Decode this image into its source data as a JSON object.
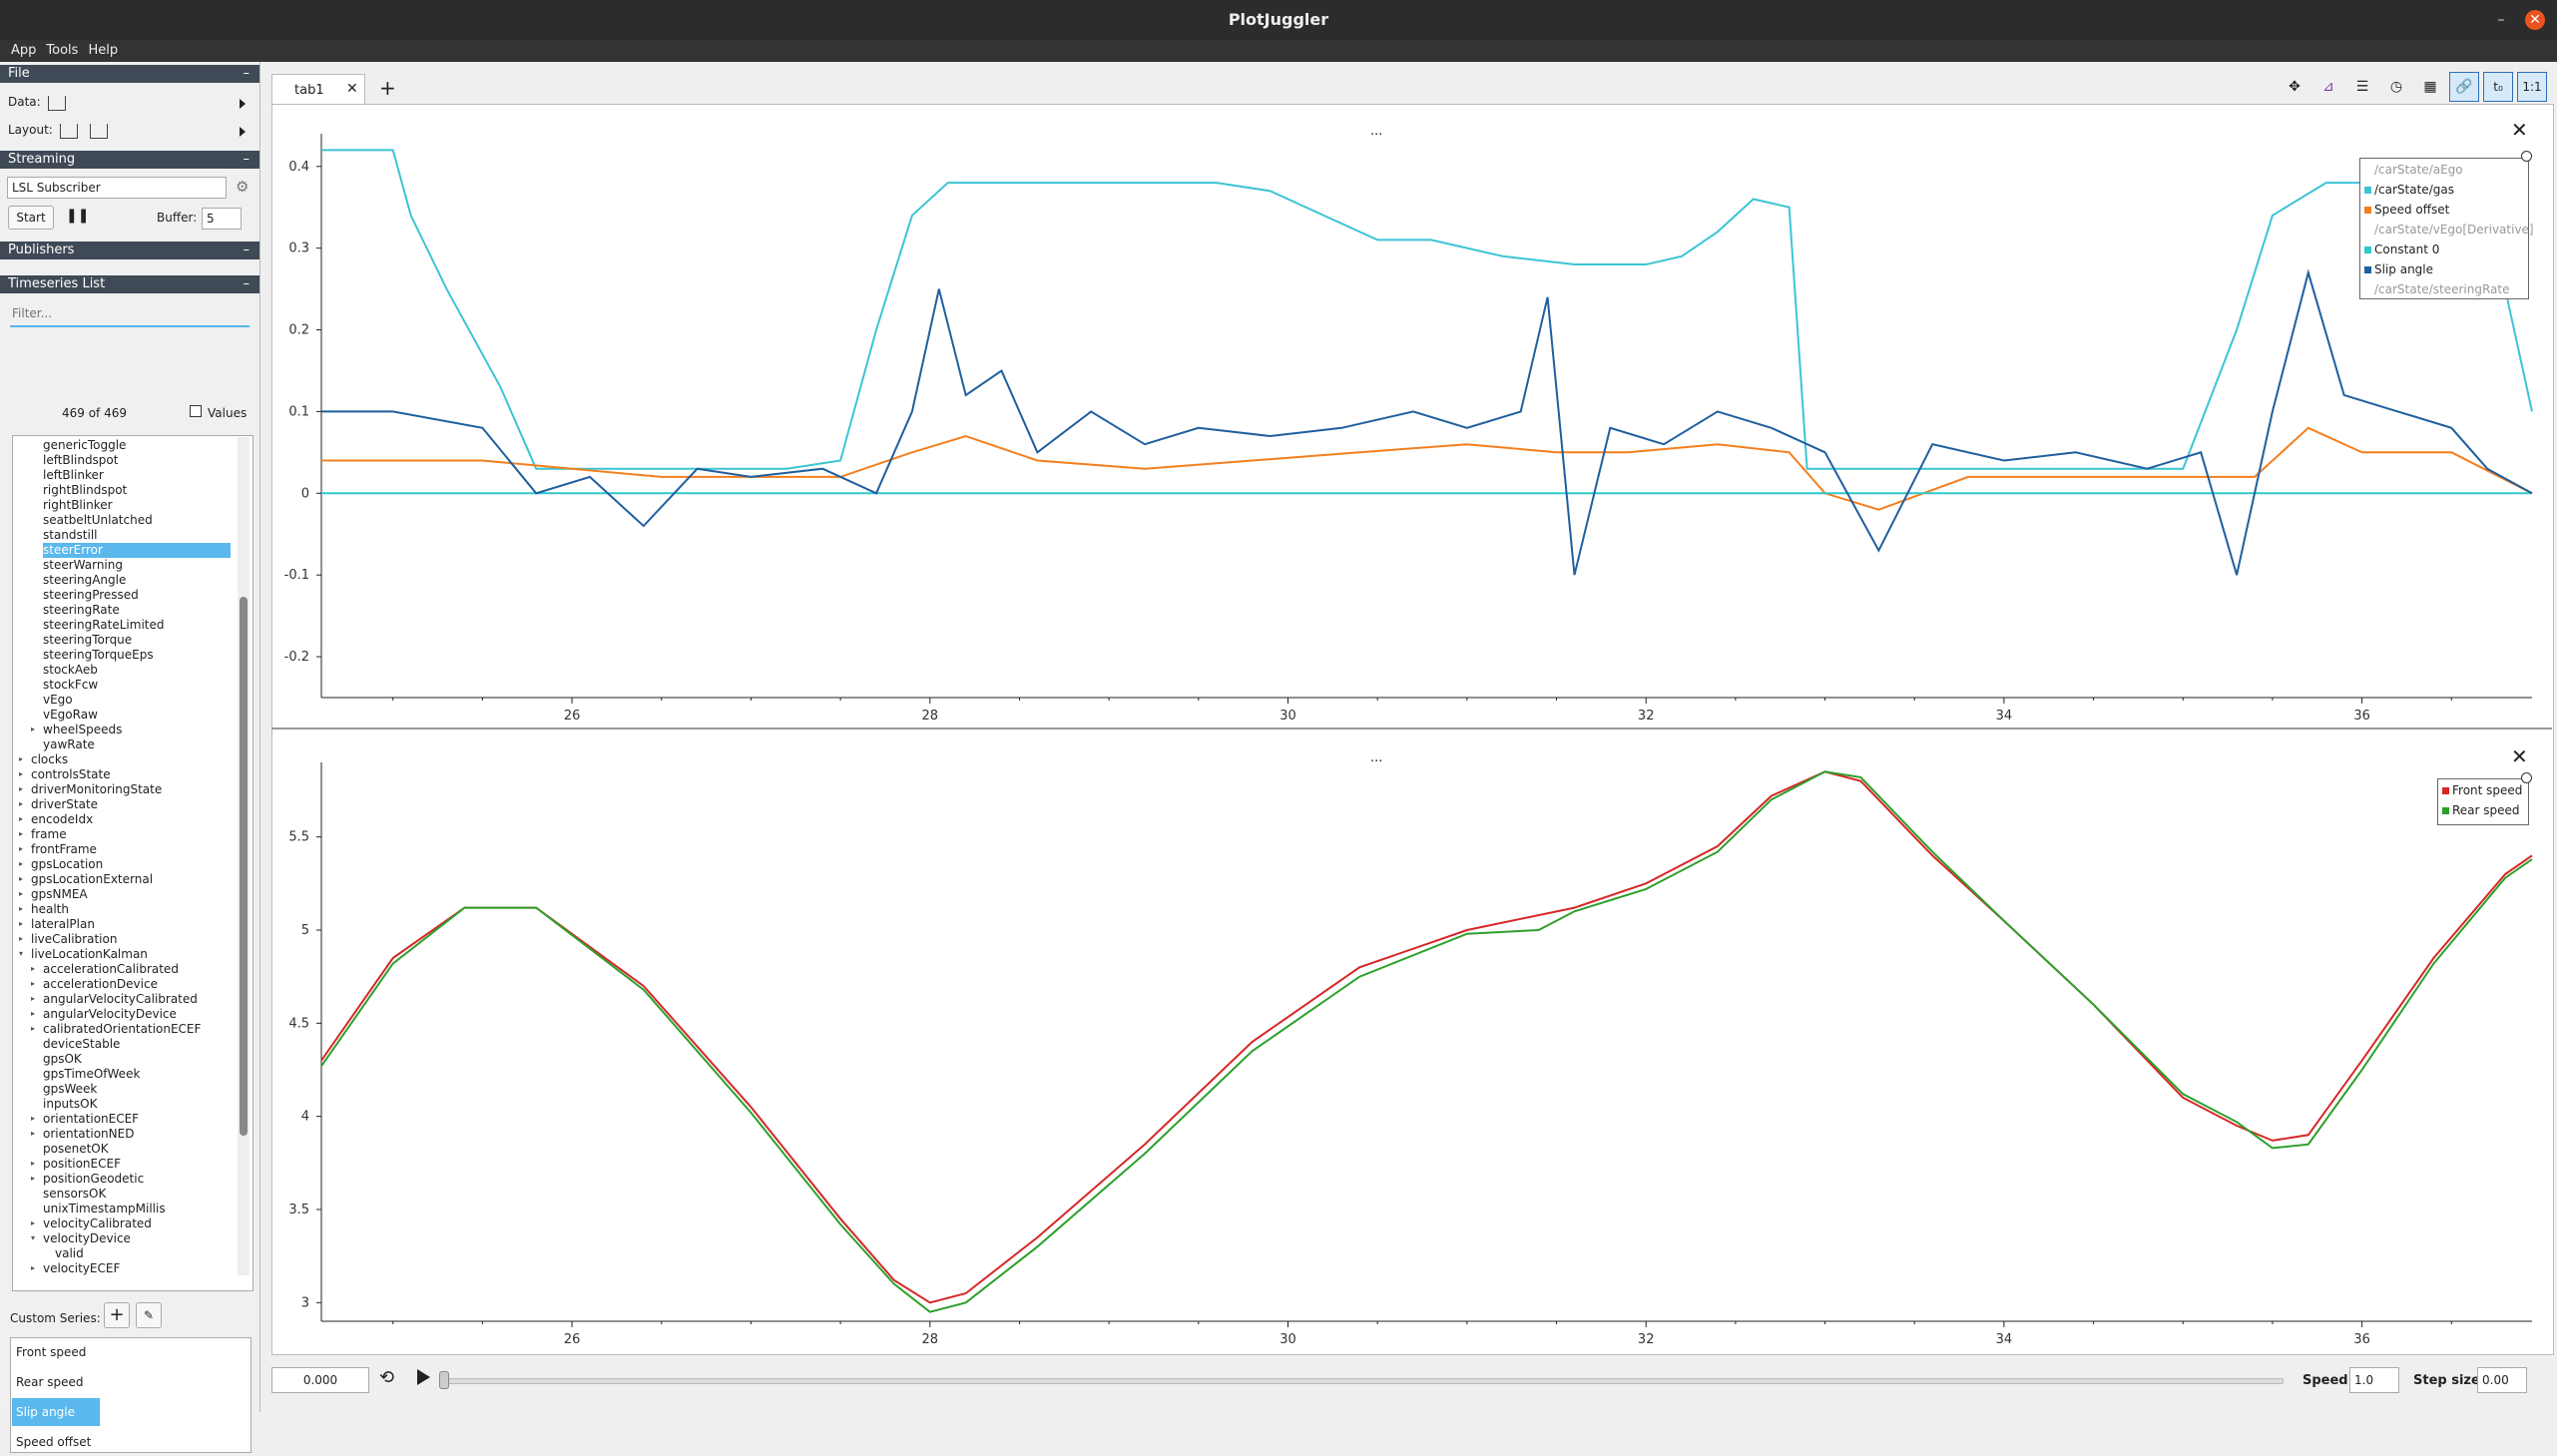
{
  "window": {
    "title": "PlotJuggler"
  },
  "menu": [
    "App",
    "Tools",
    "Help"
  ],
  "file_section": {
    "header": "File",
    "data_label": "Data:",
    "layout_label": "Layout:"
  },
  "streaming": {
    "header": "Streaming",
    "source": "LSL Subscriber",
    "start_label": "Start",
    "buffer_label": "Buffer:",
    "buffer_value": "5"
  },
  "publishers": {
    "header": "Publishers"
  },
  "timeseries": {
    "header": "Timeseries List",
    "filter_placeholder": "Filter...",
    "count": "469 of 469",
    "values_label": "Values",
    "tree": [
      {
        "label": "genericToggle",
        "lvl": 1
      },
      {
        "label": "leftBlindspot",
        "lvl": 1
      },
      {
        "label": "leftBlinker",
        "lvl": 1
      },
      {
        "label": "rightBlindspot",
        "lvl": 1
      },
      {
        "label": "rightBlinker",
        "lvl": 1
      },
      {
        "label": "seatbeltUnlatched",
        "lvl": 1
      },
      {
        "label": "standstill",
        "lvl": 1
      },
      {
        "label": "steerError",
        "lvl": 1,
        "sel": true
      },
      {
        "label": "steerWarning",
        "lvl": 1
      },
      {
        "label": "steeringAngle",
        "lvl": 1
      },
      {
        "label": "steeringPressed",
        "lvl": 1
      },
      {
        "label": "steeringRate",
        "lvl": 1
      },
      {
        "label": "steeringRateLimited",
        "lvl": 1
      },
      {
        "label": "steeringTorque",
        "lvl": 1
      },
      {
        "label": "steeringTorqueEps",
        "lvl": 1
      },
      {
        "label": "stockAeb",
        "lvl": 1
      },
      {
        "label": "stockFcw",
        "lvl": 1
      },
      {
        "label": "vEgo",
        "lvl": 1
      },
      {
        "label": "vEgoRaw",
        "lvl": 1
      },
      {
        "label": "wheelSpeeds",
        "lvl": 1,
        "exp": "r"
      },
      {
        "label": "yawRate",
        "lvl": 1
      },
      {
        "label": "clocks",
        "lvl": 0,
        "exp": "r"
      },
      {
        "label": "controlsState",
        "lvl": 0,
        "exp": "r"
      },
      {
        "label": "driverMonitoringState",
        "lvl": 0,
        "exp": "r"
      },
      {
        "label": "driverState",
        "lvl": 0,
        "exp": "r"
      },
      {
        "label": "encodeIdx",
        "lvl": 0,
        "exp": "r"
      },
      {
        "label": "frame",
        "lvl": 0,
        "exp": "r"
      },
      {
        "label": "frontFrame",
        "lvl": 0,
        "exp": "r"
      },
      {
        "label": "gpsLocation",
        "lvl": 0,
        "exp": "r"
      },
      {
        "label": "gpsLocationExternal",
        "lvl": 0,
        "exp": "r"
      },
      {
        "label": "gpsNMEA",
        "lvl": 0,
        "exp": "r"
      },
      {
        "label": "health",
        "lvl": 0,
        "exp": "r"
      },
      {
        "label": "lateralPlan",
        "lvl": 0,
        "exp": "r"
      },
      {
        "label": "liveCalibration",
        "lvl": 0,
        "exp": "r"
      },
      {
        "label": "liveLocationKalman",
        "lvl": 0,
        "exp": "d"
      },
      {
        "label": "accelerationCalibrated",
        "lvl": 1,
        "exp": "r"
      },
      {
        "label": "accelerationDevice",
        "lvl": 1,
        "exp": "r"
      },
      {
        "label": "angularVelocityCalibrated",
        "lvl": 1,
        "exp": "r"
      },
      {
        "label": "angularVelocityDevice",
        "lvl": 1,
        "exp": "r"
      },
      {
        "label": "calibratedOrientationECEF",
        "lvl": 1,
        "exp": "r"
      },
      {
        "label": "deviceStable",
        "lvl": 1
      },
      {
        "label": "gpsOK",
        "lvl": 1
      },
      {
        "label": "gpsTimeOfWeek",
        "lvl": 1
      },
      {
        "label": "gpsWeek",
        "lvl": 1
      },
      {
        "label": "inputsOK",
        "lvl": 1
      },
      {
        "label": "orientationECEF",
        "lvl": 1,
        "exp": "r"
      },
      {
        "label": "orientationNED",
        "lvl": 1,
        "exp": "r"
      },
      {
        "label": "posenetOK",
        "lvl": 1
      },
      {
        "label": "positionECEF",
        "lvl": 1,
        "exp": "r"
      },
      {
        "label": "positionGeodetic",
        "lvl": 1,
        "exp": "r"
      },
      {
        "label": "sensorsOK",
        "lvl": 1
      },
      {
        "label": "unixTimestampMillis",
        "lvl": 1
      },
      {
        "label": "velocityCalibrated",
        "lvl": 1,
        "exp": "r"
      },
      {
        "label": "velocityDevice",
        "lvl": 1,
        "exp": "d"
      },
      {
        "label": "valid",
        "lvl": 2
      },
      {
        "label": "velocityECEF",
        "lvl": 1,
        "exp": "r"
      }
    ]
  },
  "custom_series": {
    "label": "Custom Series:",
    "items": [
      "Front speed",
      "Rear speed",
      "Slip angle",
      "Speed offset"
    ],
    "selected": "Slip angle"
  },
  "tabs": {
    "active": "tab1",
    "add": "+"
  },
  "toolbar_icons": [
    "move-icon",
    "zoom-out-icon",
    "legend-icon",
    "time-clock-icon",
    "grid-icon",
    "link-icon",
    "time-zero-icon",
    "ratio-icon"
  ],
  "plot1": {
    "header": "...",
    "legend": [
      {
        "name": "/carState/aEgo",
        "color": "",
        "visible": false
      },
      {
        "name": "/carState/gas",
        "color": "#3cc4d4",
        "visible": true
      },
      {
        "name": "Speed offset",
        "color": "#f47f1e",
        "visible": true
      },
      {
        "name": "/carState/vEgo[Derivative]",
        "color": "",
        "visible": false
      },
      {
        "name": "Constant 0",
        "color": "#2ec9c9",
        "visible": true
      },
      {
        "name": "Slip angle",
        "color": "#1f5f9e",
        "visible": true
      },
      {
        "name": "/carState/steeringRate",
        "color": "",
        "visible": false
      }
    ]
  },
  "plot2": {
    "header": "...",
    "legend": [
      {
        "name": "Front speed",
        "color": "#d62728",
        "visible": true
      },
      {
        "name": "Rear speed",
        "color": "#2ca02c",
        "visible": true
      }
    ]
  },
  "chart_data": [
    {
      "type": "line",
      "xlim": [
        24.6,
        36.95
      ],
      "ylim": [
        -0.25,
        0.44
      ],
      "xticks": [
        26,
        28,
        30,
        32,
        34,
        36
      ],
      "yticks": [
        -0.2,
        -0.1,
        0,
        0.1,
        0.2,
        0.3,
        0.4
      ],
      "series": [
        {
          "name": "/carState/gas",
          "color": "#3cc4d4",
          "x": [
            24.6,
            24.8,
            25.0,
            25.1,
            25.3,
            25.6,
            25.8,
            26.2,
            27.2,
            27.5,
            27.7,
            27.9,
            28.1,
            28.8,
            29.2,
            29.6,
            29.9,
            30.5,
            30.8,
            31.2,
            31.6,
            32.0,
            32.2,
            32.4,
            32.6,
            32.8,
            32.9,
            33.6,
            35.0,
            35.3,
            35.5,
            35.8,
            36.2,
            36.6,
            36.8,
            36.95
          ],
          "y": [
            0.42,
            0.42,
            0.42,
            0.34,
            0.25,
            0.13,
            0.03,
            0.03,
            0.03,
            0.04,
            0.2,
            0.34,
            0.38,
            0.38,
            0.38,
            0.38,
            0.37,
            0.31,
            0.31,
            0.29,
            0.28,
            0.28,
            0.29,
            0.32,
            0.36,
            0.35,
            0.03,
            0.03,
            0.03,
            0.2,
            0.34,
            0.38,
            0.38,
            0.37,
            0.25,
            0.1
          ]
        },
        {
          "name": "Speed offset",
          "color": "#f47f1e",
          "x": [
            24.6,
            25.5,
            26.5,
            27.5,
            27.9,
            28.2,
            28.6,
            29.2,
            29.8,
            30.4,
            31.0,
            31.5,
            31.9,
            32.4,
            32.8,
            33.0,
            33.3,
            33.8,
            34.4,
            35.0,
            35.4,
            35.7,
            36.0,
            36.5,
            36.95
          ],
          "y": [
            0.04,
            0.04,
            0.02,
            0.02,
            0.05,
            0.07,
            0.04,
            0.03,
            0.04,
            0.05,
            0.06,
            0.05,
            0.05,
            0.06,
            0.05,
            0.0,
            -0.02,
            0.02,
            0.02,
            0.02,
            0.02,
            0.08,
            0.05,
            0.05,
            0.0
          ]
        },
        {
          "name": "Constant 0",
          "color": "#2ec9c9",
          "x": [
            24.6,
            36.95
          ],
          "y": [
            0,
            0
          ]
        },
        {
          "name": "Slip angle",
          "color": "#1f5f9e",
          "x": [
            24.6,
            25.0,
            25.5,
            25.8,
            26.1,
            26.4,
            26.7,
            27.0,
            27.4,
            27.7,
            27.9,
            28.05,
            28.2,
            28.4,
            28.6,
            28.9,
            29.2,
            29.5,
            29.9,
            30.3,
            30.7,
            31.0,
            31.3,
            31.45,
            31.6,
            31.8,
            32.1,
            32.4,
            32.7,
            33.0,
            33.3,
            33.6,
            34.0,
            34.4,
            34.8,
            35.1,
            35.3,
            35.5,
            35.7,
            35.9,
            36.2,
            36.5,
            36.7,
            36.95
          ],
          "y": [
            0.1,
            0.1,
            0.08,
            0.0,
            0.02,
            -0.04,
            0.03,
            0.02,
            0.03,
            0.0,
            0.1,
            0.25,
            0.12,
            0.15,
            0.05,
            0.1,
            0.06,
            0.08,
            0.07,
            0.08,
            0.1,
            0.08,
            0.1,
            0.24,
            -0.1,
            0.08,
            0.06,
            0.1,
            0.08,
            0.05,
            -0.07,
            0.06,
            0.04,
            0.05,
            0.03,
            0.05,
            -0.1,
            0.1,
            0.27,
            0.12,
            0.1,
            0.08,
            0.03,
            0.0
          ]
        }
      ]
    },
    {
      "type": "line",
      "xlim": [
        24.6,
        36.95
      ],
      "ylim": [
        2.9,
        5.9
      ],
      "xticks": [
        26,
        28,
        30,
        32,
        34,
        36
      ],
      "yticks": [
        3,
        3.5,
        4,
        4.5,
        5,
        5.5
      ],
      "series": [
        {
          "name": "Front speed",
          "color": "#d62728",
          "x": [
            24.6,
            25.0,
            25.4,
            25.8,
            26.4,
            27.0,
            27.5,
            27.8,
            28.0,
            28.2,
            28.6,
            29.2,
            29.8,
            30.4,
            31.0,
            31.6,
            32.0,
            32.4,
            32.7,
            33.0,
            33.2,
            33.6,
            34.0,
            34.5,
            35.0,
            35.3,
            35.5,
            35.7,
            36.0,
            36.4,
            36.8,
            36.95
          ],
          "y": [
            4.3,
            4.85,
            5.12,
            5.12,
            4.7,
            4.05,
            3.45,
            3.12,
            3.0,
            3.05,
            3.35,
            3.85,
            4.4,
            4.8,
            5.0,
            5.12,
            5.25,
            5.45,
            5.72,
            5.85,
            5.8,
            5.4,
            5.05,
            4.6,
            4.1,
            3.95,
            3.87,
            3.9,
            4.3,
            4.85,
            5.3,
            5.4
          ]
        },
        {
          "name": "Rear speed",
          "color": "#2ca02c",
          "x": [
            24.6,
            25.0,
            25.4,
            25.8,
            26.4,
            27.0,
            27.5,
            27.8,
            28.0,
            28.2,
            28.6,
            29.2,
            29.8,
            30.4,
            31.0,
            31.4,
            31.6,
            32.0,
            32.4,
            32.7,
            33.0,
            33.2,
            33.6,
            34.0,
            34.5,
            35.0,
            35.3,
            35.5,
            35.7,
            36.0,
            36.4,
            36.8,
            36.95
          ],
          "y": [
            4.27,
            4.82,
            5.12,
            5.12,
            4.68,
            4.02,
            3.42,
            3.1,
            2.95,
            3.0,
            3.3,
            3.8,
            4.35,
            4.75,
            4.98,
            5.0,
            5.1,
            5.22,
            5.42,
            5.7,
            5.85,
            5.82,
            5.42,
            5.05,
            4.6,
            4.12,
            3.97,
            3.83,
            3.85,
            4.25,
            4.82,
            5.28,
            5.38
          ]
        }
      ]
    }
  ],
  "bottom": {
    "time_value": "0.000",
    "speed_label": "Speed:",
    "speed_value": "1.0",
    "step_label": "Step size:",
    "step_value": "0.00"
  }
}
